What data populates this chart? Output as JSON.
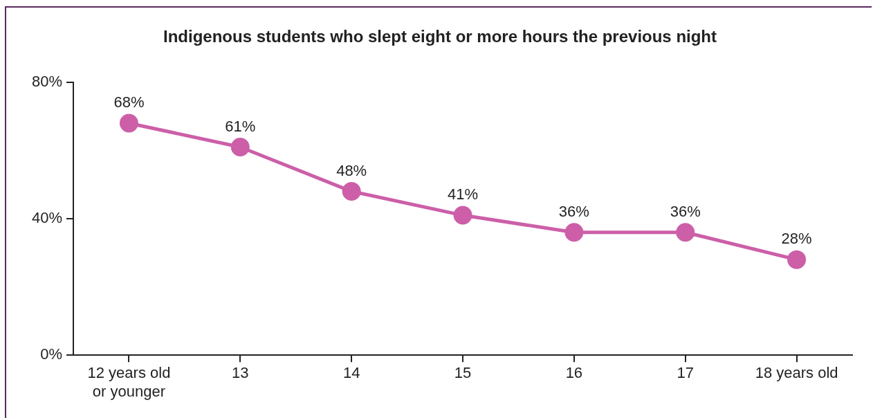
{
  "chart_data": {
    "type": "line",
    "title": "Indigenous students who slept eight or more hours the previous night",
    "categories": [
      "12 years old or younger",
      "13",
      "14",
      "15",
      "16",
      "17",
      "18 years old"
    ],
    "values": [
      68,
      61,
      48,
      41,
      36,
      36,
      28
    ],
    "value_labels": [
      "68%",
      "61%",
      "48%",
      "41%",
      "36%",
      "36%",
      "28%"
    ],
    "color": "#cc5fa8",
    "ylim": [
      0,
      80
    ],
    "yticks": [
      {
        "value": 0,
        "label": "0%"
      },
      {
        "value": 40,
        "label": "40%"
      },
      {
        "value": 80,
        "label": "80%"
      }
    ],
    "grid": false,
    "legend": false,
    "marker": "circle",
    "line_style": "solid"
  }
}
